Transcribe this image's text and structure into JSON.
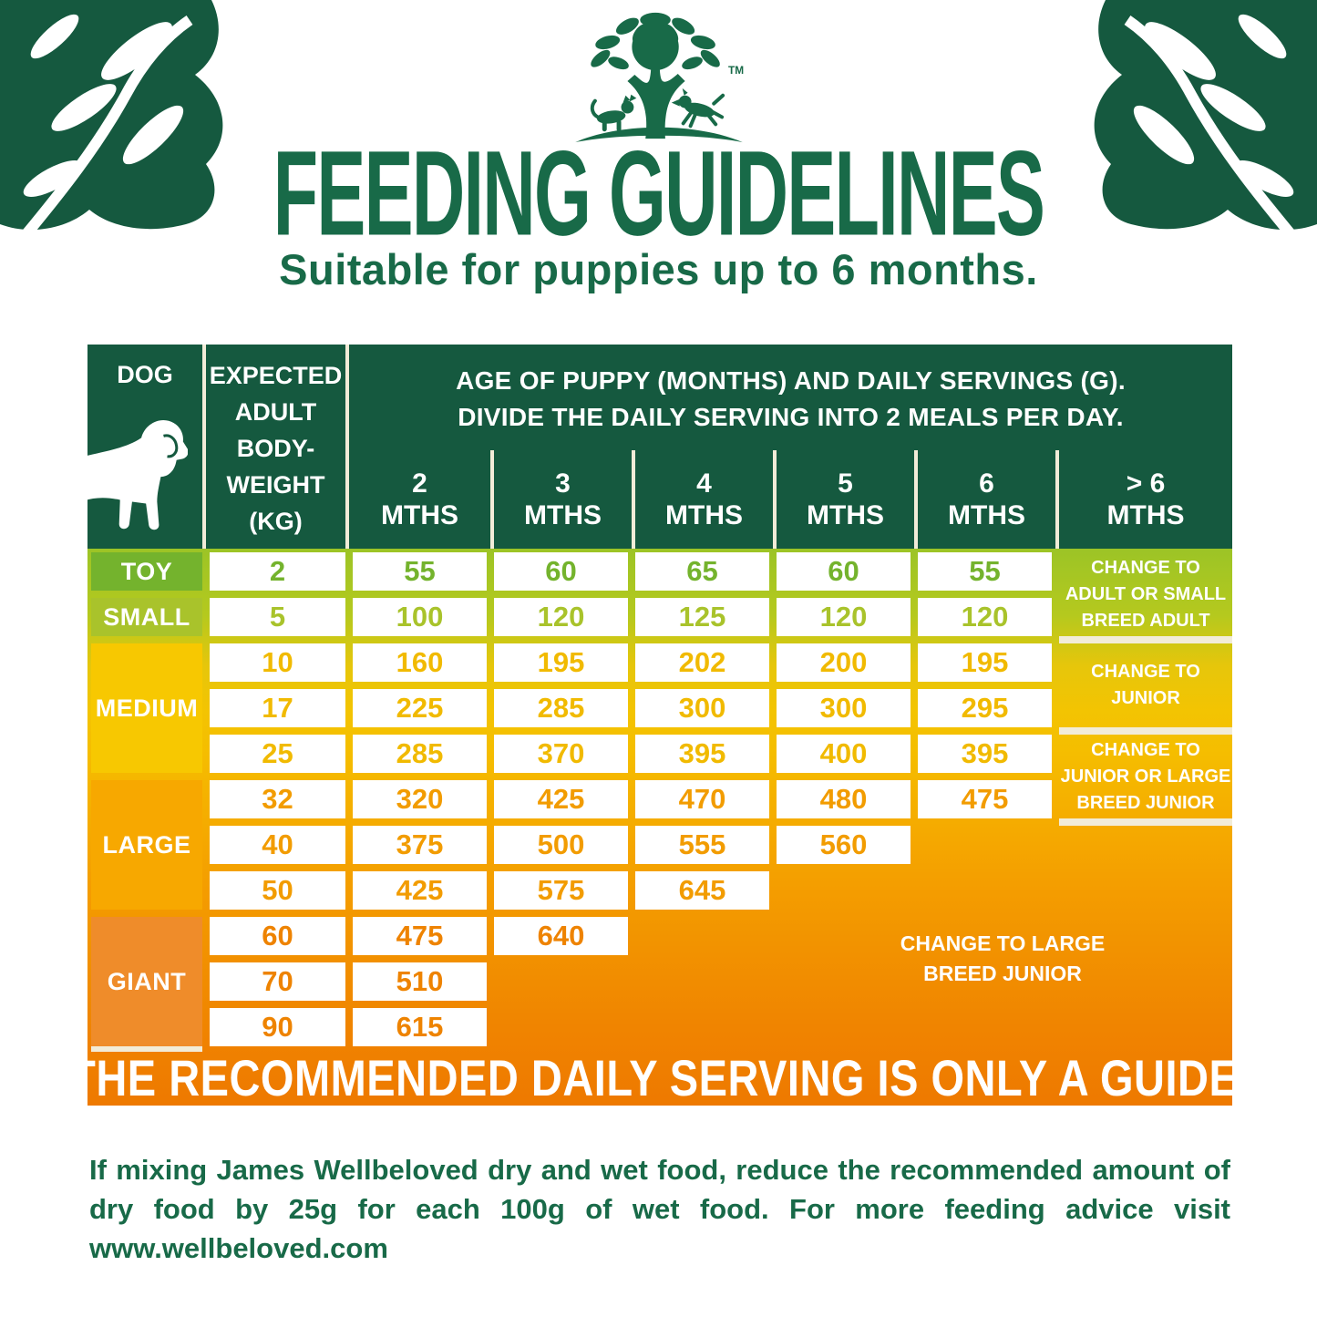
{
  "header": {
    "logo_name": "tree-paw-cat-dog-logo",
    "logo_tm": "TM",
    "title": "FEEDING GUIDELINES",
    "subtitle": "Suitable for puppies up to 6 months."
  },
  "table": {
    "dog_header": "DOG",
    "weight_header_lines": [
      "EXPECTED",
      "ADULT",
      "BODY-",
      "WEIGHT",
      "(KG)"
    ],
    "months_title_line1": "AGE OF PUPPY (MONTHS) AND DAILY SERVINGS (G).",
    "months_title_line2": "DIVIDE THE DAILY SERVING INTO 2 MEALS PER DAY.",
    "month_columns": [
      {
        "num": "2",
        "unit": "MTHS"
      },
      {
        "num": "3",
        "unit": "MTHS"
      },
      {
        "num": "4",
        "unit": "MTHS"
      },
      {
        "num": "5",
        "unit": "MTHS"
      },
      {
        "num": "6",
        "unit": "MTHS"
      },
      {
        "num": "> 6",
        "unit": "MTHS"
      }
    ],
    "groups": [
      {
        "label": "TOY",
        "block_color": "#74B32D",
        "value_color": "#74B32D",
        "rows": [
          {
            "weight": "2",
            "servings": [
              "55",
              "60",
              "65",
              "60",
              "55"
            ]
          }
        ]
      },
      {
        "label": "SMALL",
        "block_color": "#A9C32B",
        "value_color": "#A9C32B",
        "rows": [
          {
            "weight": "5",
            "servings": [
              "100",
              "120",
              "125",
              "120",
              "120"
            ]
          }
        ]
      },
      {
        "label": "MEDIUM",
        "block_color": "#F7C801",
        "value_color": "#F1BA00",
        "rows": [
          {
            "weight": "10",
            "servings": [
              "160",
              "195",
              "202",
              "200",
              "195"
            ]
          },
          {
            "weight": "17",
            "servings": [
              "225",
              "285",
              "300",
              "300",
              "295"
            ]
          },
          {
            "weight": "25",
            "servings": [
              "285",
              "370",
              "395",
              "400",
              "395"
            ]
          }
        ]
      },
      {
        "label": "LARGE",
        "block_color": "#F7A800",
        "value_color": "#F29C00",
        "rows": [
          {
            "weight": "32",
            "servings": [
              "320",
              "425",
              "470",
              "480",
              "475"
            ]
          },
          {
            "weight": "40",
            "servings": [
              "375",
              "500",
              "555",
              "560"
            ]
          },
          {
            "weight": "50",
            "servings": [
              "425",
              "575",
              "645"
            ]
          }
        ]
      },
      {
        "label": "GIANT",
        "block_color": "#EF8C2A",
        "value_color": "#EE8300",
        "rows": [
          {
            "weight": "60",
            "servings": [
              "475",
              "640"
            ]
          },
          {
            "weight": "70",
            "servings": [
              "510"
            ]
          },
          {
            "weight": "90",
            "servings": [
              "615"
            ]
          }
        ]
      }
    ],
    "notes": [
      {
        "lines": [
          "CHANGE TO",
          "ADULT OR SMALL",
          "BREED ADULT"
        ],
        "row_start": 1,
        "row_span": 2,
        "divider_below": true
      },
      {
        "lines": [
          "CHANGE TO",
          "JUNIOR"
        ],
        "row_start": 3,
        "row_span": 2,
        "divider_below": true
      },
      {
        "lines": [
          "CHANGE TO",
          "JUNIOR OR LARGE",
          "BREED JUNIOR"
        ],
        "row_start": 5,
        "row_span": 2,
        "divider_below": true
      },
      {
        "lines": [
          "CHANGE TO LARGE",
          "BREED JUNIOR"
        ],
        "row_start": 9,
        "row_span": 2,
        "col_start": 6,
        "col_span": 3,
        "large_area": true
      }
    ],
    "banner": "THE RECOMMENDED DAILY SERVING IS ONLY A GUIDE."
  },
  "footnote": "If mixing James Wellbeloved dry and wet food, reduce the recommended amount of dry food by 25g for each 100g of wet food. For more feeding advice visit www.wellbeloved.com",
  "colors": {
    "header_green": "#15593F",
    "brand_green": "#186A48",
    "cream_divider": "#F2ECD8",
    "gradient_top": "#9CC426",
    "gradient_bottom": "#EE7900",
    "cell_background": "#FFFFFF",
    "banner_text": "#FFFFFF"
  }
}
